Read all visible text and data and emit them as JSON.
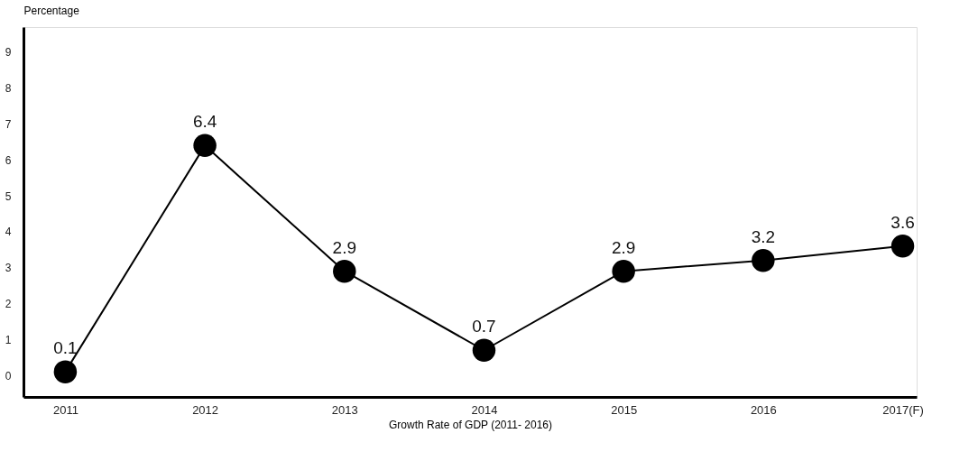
{
  "chart_data": {
    "type": "line",
    "xlabel": "Growth Rate of  GDP (2011- 2016)",
    "ylabel": "Percentage",
    "categories": [
      "2011",
      "2012",
      "2013",
      "2014",
      "2015",
      "2016",
      "2017(F)"
    ],
    "series": [
      {
        "color": "#000000",
        "values": [
          0.1,
          6.4,
          2.9,
          0.7,
          2.9,
          3.2,
          3.6
        ]
      }
    ],
    "ylim": [
      -0.6,
      9.7
    ],
    "yticks": [
      0,
      1,
      2,
      3,
      4,
      5,
      6,
      7,
      8,
      9
    ],
    "data_labels": true,
    "marker": "circle",
    "line_style": "solid",
    "grid": false
  }
}
